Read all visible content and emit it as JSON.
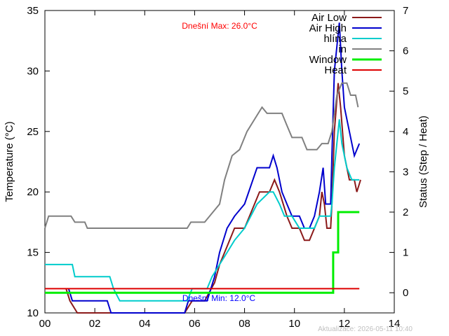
{
  "chart_data": {
    "type": "line",
    "ylabel": "Temperature (°C)",
    "y2label": "Status (Step / Heat)",
    "xlim": [
      0,
      14
    ],
    "ylim": [
      10,
      35
    ],
    "y2lim": [
      -0.5,
      7
    ],
    "grid": false,
    "legend_position": "top-right",
    "x_ticks": [
      {
        "v": 0,
        "label": "00"
      },
      {
        "v": 2,
        "label": "02"
      },
      {
        "v": 4,
        "label": "04"
      },
      {
        "v": 6,
        "label": "06"
      },
      {
        "v": 8,
        "label": "08"
      },
      {
        "v": 10,
        "label": "10"
      },
      {
        "v": 12,
        "label": "12"
      },
      {
        "v": 14,
        "label": "14"
      }
    ],
    "y_ticks": [
      {
        "v": 10,
        "label": "10"
      },
      {
        "v": 15,
        "label": "15"
      },
      {
        "v": 20,
        "label": "20"
      },
      {
        "v": 25,
        "label": "25"
      },
      {
        "v": 30,
        "label": "30"
      },
      {
        "v": 35,
        "label": "35"
      }
    ],
    "y2_ticks": [
      {
        "v": 0,
        "label": "0"
      },
      {
        "v": 1,
        "label": "1"
      },
      {
        "v": 2,
        "label": "2"
      },
      {
        "v": 3,
        "label": "3"
      },
      {
        "v": 4,
        "label": "4"
      },
      {
        "v": 5,
        "label": "5"
      },
      {
        "v": 6,
        "label": "6"
      },
      {
        "v": 7,
        "label": "7"
      }
    ],
    "annotations": {
      "max_text": "Dnešní Max: 26.0°C",
      "min_text": "Dnešní Min: 12.0°C",
      "updated_text": "Aktualizace: 2026-05-11 10:40"
    },
    "series": [
      {
        "name": "Air Low",
        "color": "#8b1a1a",
        "axis": "y",
        "points": [
          [
            0.85,
            12
          ],
          [
            1.0,
            11
          ],
          [
            1.3,
            10
          ],
          [
            2.0,
            10
          ],
          [
            2.6,
            10
          ],
          [
            3.0,
            9.5
          ],
          [
            5.6,
            9.5
          ],
          [
            5.9,
            11
          ],
          [
            6.4,
            11
          ],
          [
            6.8,
            12.5
          ],
          [
            7.0,
            14
          ],
          [
            7.3,
            15.5
          ],
          [
            7.6,
            17
          ],
          [
            8.0,
            17
          ],
          [
            8.4,
            19
          ],
          [
            8.6,
            20
          ],
          [
            9.0,
            20
          ],
          [
            9.2,
            21
          ],
          [
            9.4,
            20
          ],
          [
            9.7,
            18
          ],
          [
            9.9,
            17
          ],
          [
            10.2,
            17
          ],
          [
            10.4,
            16
          ],
          [
            10.6,
            16
          ],
          [
            10.8,
            17
          ],
          [
            11.0,
            18
          ],
          [
            11.1,
            20
          ],
          [
            11.2,
            19
          ],
          [
            11.3,
            17
          ],
          [
            11.45,
            17
          ],
          [
            11.5,
            19
          ],
          [
            11.6,
            25
          ],
          [
            11.75,
            29
          ],
          [
            11.85,
            27
          ],
          [
            12.0,
            23
          ],
          [
            12.2,
            21
          ],
          [
            12.4,
            21
          ],
          [
            12.5,
            20
          ],
          [
            12.65,
            21
          ]
        ]
      },
      {
        "name": "Air High",
        "color": "#0000cd",
        "axis": "y",
        "points": [
          [
            0.95,
            12
          ],
          [
            1.1,
            11
          ],
          [
            2.0,
            11
          ],
          [
            2.5,
            11
          ],
          [
            2.65,
            10
          ],
          [
            3.0,
            9.5
          ],
          [
            5.6,
            9.5
          ],
          [
            5.75,
            11
          ],
          [
            6.5,
            11
          ],
          [
            6.8,
            13
          ],
          [
            7.0,
            15
          ],
          [
            7.3,
            17
          ],
          [
            7.6,
            18
          ],
          [
            8.0,
            19
          ],
          [
            8.5,
            22
          ],
          [
            9.0,
            22
          ],
          [
            9.15,
            23
          ],
          [
            9.3,
            22
          ],
          [
            9.5,
            20
          ],
          [
            9.7,
            19
          ],
          [
            9.9,
            18
          ],
          [
            10.2,
            18
          ],
          [
            10.4,
            17
          ],
          [
            10.6,
            17
          ],
          [
            10.8,
            18
          ],
          [
            11.0,
            20
          ],
          [
            11.15,
            22
          ],
          [
            11.25,
            19
          ],
          [
            11.45,
            19
          ],
          [
            11.5,
            23
          ],
          [
            11.6,
            30
          ],
          [
            11.8,
            34
          ],
          [
            11.9,
            30
          ],
          [
            12.0,
            27
          ],
          [
            12.2,
            25
          ],
          [
            12.4,
            23
          ],
          [
            12.6,
            24
          ]
        ]
      },
      {
        "name": "hlína",
        "color": "#00cccc",
        "axis": "y",
        "points": [
          [
            0.0,
            14
          ],
          [
            1.1,
            14
          ],
          [
            1.2,
            13
          ],
          [
            2.6,
            13
          ],
          [
            2.75,
            12
          ],
          [
            3.0,
            11
          ],
          [
            5.7,
            11
          ],
          [
            5.9,
            12
          ],
          [
            6.5,
            12
          ],
          [
            6.7,
            13
          ],
          [
            7.0,
            14
          ],
          [
            7.3,
            15
          ],
          [
            7.6,
            16
          ],
          [
            8.0,
            17
          ],
          [
            8.5,
            19
          ],
          [
            9.0,
            20
          ],
          [
            9.15,
            20
          ],
          [
            9.4,
            19
          ],
          [
            9.6,
            18
          ],
          [
            9.9,
            18
          ],
          [
            10.2,
            17
          ],
          [
            10.4,
            17
          ],
          [
            10.6,
            17
          ],
          [
            10.8,
            17
          ],
          [
            11.0,
            18
          ],
          [
            11.15,
            18
          ],
          [
            11.25,
            18
          ],
          [
            11.45,
            18
          ],
          [
            11.5,
            19
          ],
          [
            11.6,
            22
          ],
          [
            11.8,
            26
          ],
          [
            11.9,
            24
          ],
          [
            12.1,
            22
          ],
          [
            12.3,
            21
          ],
          [
            12.6,
            21
          ]
        ]
      },
      {
        "name": "in",
        "color": "#808080",
        "axis": "y",
        "points": [
          [
            0.0,
            17
          ],
          [
            0.15,
            18
          ],
          [
            1.05,
            18
          ],
          [
            1.2,
            17.5
          ],
          [
            1.6,
            17.5
          ],
          [
            1.7,
            17
          ],
          [
            5.7,
            17
          ],
          [
            5.85,
            17.5
          ],
          [
            6.4,
            17.5
          ],
          [
            6.6,
            18
          ],
          [
            6.8,
            18.5
          ],
          [
            7.0,
            19
          ],
          [
            7.2,
            21
          ],
          [
            7.5,
            23
          ],
          [
            7.8,
            23.5
          ],
          [
            8.1,
            25
          ],
          [
            8.4,
            26
          ],
          [
            8.7,
            27
          ],
          [
            8.9,
            26.5
          ],
          [
            9.5,
            26.5
          ],
          [
            9.7,
            25.5
          ],
          [
            9.9,
            24.5
          ],
          [
            10.3,
            24.5
          ],
          [
            10.5,
            23.5
          ],
          [
            10.9,
            23.5
          ],
          [
            11.1,
            24
          ],
          [
            11.35,
            24
          ],
          [
            11.5,
            25
          ],
          [
            11.7,
            28
          ],
          [
            11.9,
            29
          ],
          [
            12.1,
            29
          ],
          [
            12.25,
            28
          ],
          [
            12.45,
            28
          ],
          [
            12.55,
            27
          ]
        ]
      },
      {
        "name": "Window",
        "color": "#00ee00",
        "axis": "y2",
        "step": true,
        "points": [
          [
            0.0,
            0
          ],
          [
            11.55,
            0
          ],
          [
            11.55,
            1
          ],
          [
            11.75,
            1
          ],
          [
            11.75,
            2
          ],
          [
            12.6,
            2
          ]
        ]
      },
      {
        "name": "Heat",
        "color": "#dd0000",
        "axis": "y2",
        "step": true,
        "points": [
          [
            0.0,
            0.1
          ],
          [
            12.6,
            0.1
          ]
        ]
      }
    ]
  }
}
